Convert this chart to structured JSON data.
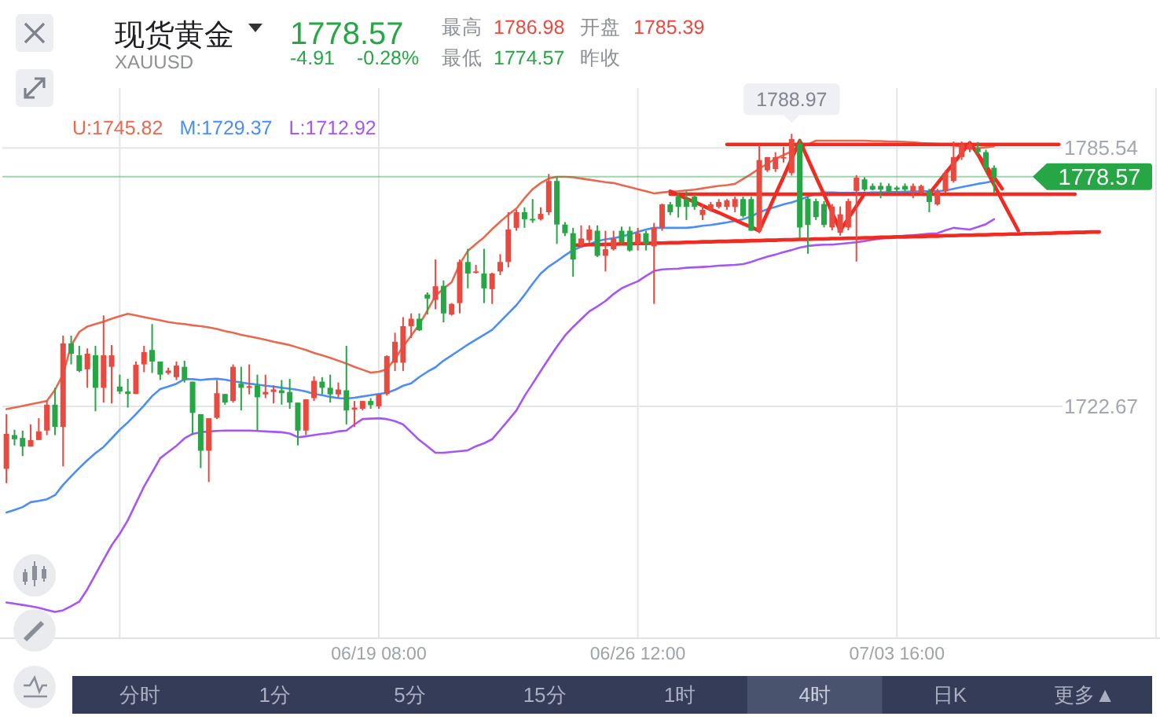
{
  "chart_data": {
    "type": "candlestick",
    "title": "现货黄金",
    "subtitle": "XAUUSD",
    "categories": [
      null,
      null,
      null,
      null,
      null,
      null,
      null,
      null,
      null,
      null,
      null,
      null,
      null,
      null,
      null,
      null,
      null,
      null,
      null,
      null,
      null,
      null,
      null,
      null,
      null,
      null,
      null,
      null,
      null,
      null,
      null,
      null,
      null,
      null,
      null,
      null,
      null,
      null,
      null,
      null,
      null,
      null,
      null,
      null,
      null,
      null,
      "06/19 08:00",
      null,
      null,
      null,
      null,
      null,
      null,
      null,
      null,
      null,
      null,
      null,
      null,
      null,
      null,
      null,
      null,
      null,
      null,
      null,
      null,
      null,
      null,
      null,
      null,
      null,
      null,
      null,
      null,
      null,
      null,
      null,
      "06/26 12:00",
      null,
      null,
      null,
      null,
      null,
      null,
      null,
      null,
      null,
      null,
      null,
      null,
      null,
      null,
      null,
      null,
      null,
      null,
      null,
      null,
      null,
      null,
      null,
      null,
      null,
      null,
      null,
      null,
      null,
      null,
      null,
      "07/03 16:00",
      null,
      null,
      null,
      null,
      null,
      null,
      null,
      null,
      null,
      null,
      null,
      null,
      null,
      null,
      null,
      null,
      null,
      null,
      null,
      null,
      null,
      null,
      null,
      null,
      null,
      null,
      null,
      null,
      null,
      null,
      null,
      null
    ],
    "ohlc": [
      [
        1707.5,
        1720.8,
        1704.0,
        1716.0
      ],
      [
        1715.7,
        1717.0,
        1713.2,
        1714.7
      ],
      [
        1715.0,
        1716.8,
        1710.6,
        1712.9
      ],
      [
        1712.9,
        1718.3,
        1712.9,
        1714.5
      ],
      [
        1714.5,
        1719.8,
        1714.5,
        1716.6
      ],
      [
        1716.8,
        1724.0,
        1715.7,
        1723.1
      ],
      [
        1723.1,
        1727.2,
        1715.7,
        1717.7
      ],
      [
        1717.7,
        1739.9,
        1708.1,
        1738.0
      ],
      [
        1738.0,
        1739.9,
        1732.9,
        1735.5
      ],
      [
        1735.1,
        1737.4,
        1731.0,
        1731.3
      ],
      [
        1731.7,
        1736.8,
        1727.2,
        1735.5
      ],
      [
        1735.1,
        1737.4,
        1721.5,
        1727.2
      ],
      [
        1727.2,
        1744.8,
        1723.6,
        1735.1
      ],
      [
        1732.3,
        1737.6,
        1723.4,
        1735.1
      ],
      [
        1727.5,
        1730.4,
        1725.7,
        1726.3
      ],
      [
        1726.3,
        1729.4,
        1722.4,
        1725.7
      ],
      [
        1725.7,
        1733.6,
        1725.7,
        1732.8
      ],
      [
        1732.9,
        1737.4,
        1731.0,
        1735.9
      ],
      [
        1736.4,
        1742.7,
        1730.8,
        1733.6
      ],
      [
        1733.6,
        1733.6,
        1729.1,
        1730.4
      ],
      [
        1730.8,
        1732.1,
        1730.4,
        1731.4
      ],
      [
        1729.8,
        1733.6,
        1729.1,
        1732.6
      ],
      [
        1732.3,
        1733.8,
        1728.5,
        1729.1
      ],
      [
        1728.7,
        1728.7,
        1715.7,
        1721.1
      ],
      [
        1720.8,
        1720.8,
        1707.7,
        1711.9
      ],
      [
        1711.9,
        1719.8,
        1704.3,
        1719.8
      ],
      [
        1719.9,
        1729.1,
        1719.6,
        1725.9
      ],
      [
        1725.7,
        1725.7,
        1723.1,
        1723.6
      ],
      [
        1724.0,
        1732.9,
        1723.6,
        1732.3
      ],
      [
        1728.2,
        1732.3,
        1721.7,
        1727.2
      ],
      [
        1727.2,
        1732.9,
        1725.6,
        1727.6
      ],
      [
        1727.8,
        1730.4,
        1716.8,
        1724.9
      ],
      [
        1725.6,
        1730.4,
        1724.7,
        1726.2
      ],
      [
        1726.2,
        1727.8,
        1723.4,
        1726.8
      ],
      [
        1726.6,
        1729.1,
        1723.1,
        1725.9
      ],
      [
        1726.2,
        1729.4,
        1722.1,
        1723.6
      ],
      [
        1723.6,
        1723.6,
        1713.2,
        1716.8
      ],
      [
        1716.8,
        1724.4,
        1715.7,
        1724.4
      ],
      [
        1724.7,
        1730.0,
        1724.0,
        1728.9
      ],
      [
        1728.7,
        1729.8,
        1725.6,
        1727.2
      ],
      [
        1727.2,
        1730.4,
        1723.6,
        1725.6
      ],
      [
        1725.6,
        1728.5,
        1724.7,
        1726.8
      ],
      [
        1726.6,
        1737.4,
        1718.3,
        1721.7
      ],
      [
        1721.9,
        1724.0,
        1717.7,
        1722.4
      ],
      [
        1722.1,
        1724.0,
        1721.7,
        1724.0
      ],
      [
        1724.0,
        1724.7,
        1722.1,
        1723.0
      ],
      [
        1722.7,
        1725.7,
        1722.1,
        1725.7
      ],
      [
        1725.7,
        1735.1,
        1725.3,
        1734.9
      ],
      [
        1733.3,
        1740.6,
        1731.3,
        1738.4
      ],
      [
        1733.3,
        1744.4,
        1731.3,
        1742.2
      ],
      [
        1742.2,
        1745.3,
        1739.3,
        1744.0
      ],
      [
        1744.0,
        1745.3,
        1741.0,
        1741.2
      ],
      [
        1749.9,
        1750.4,
        1745.0,
        1748.9
      ],
      [
        1748.6,
        1758.4,
        1746.3,
        1751.9
      ],
      [
        1752.0,
        1753.3,
        1743.1,
        1745.3
      ],
      [
        1745.0,
        1747.8,
        1744.8,
        1747.6
      ],
      [
        1747.8,
        1758.4,
        1745.3,
        1757.8
      ],
      [
        1757.8,
        1761.0,
        1751.4,
        1755.0
      ],
      [
        1755.2,
        1757.1,
        1755.0,
        1755.5
      ],
      [
        1755.0,
        1761.0,
        1747.8,
        1751.4
      ],
      [
        1751.2,
        1755.2,
        1747.6,
        1755.0
      ],
      [
        1755.5,
        1759.7,
        1754.6,
        1757.8
      ],
      [
        1757.8,
        1769.9,
        1756.5,
        1765.7
      ],
      [
        1766.1,
        1770.5,
        1765.4,
        1769.9
      ],
      [
        1769.9,
        1771.1,
        1766.1,
        1768.2
      ],
      [
        1768.3,
        1773.1,
        1767.3,
        1767.9
      ],
      [
        1768.2,
        1771.1,
        1767.9,
        1769.5
      ],
      [
        1769.9,
        1779.2,
        1769.2,
        1777.5
      ],
      [
        1777.5,
        1778.4,
        1762.2,
        1766.9
      ],
      [
        1766.9,
        1767.5,
        1764.1,
        1764.8
      ],
      [
        1764.8,
        1766.1,
        1754.2,
        1758.4
      ],
      [
        1761.9,
        1766.7,
        1761.3,
        1763.5
      ],
      [
        1763.1,
        1766.7,
        1762.2,
        1765.7
      ],
      [
        1765.4,
        1766.7,
        1759.0,
        1759.3
      ],
      [
        1759.3,
        1765.4,
        1755.5,
        1760.9
      ],
      [
        1760.9,
        1765.4,
        1760.6,
        1763.5
      ],
      [
        1765.4,
        1766.4,
        1762.2,
        1762.6
      ],
      [
        1765.4,
        1766.4,
        1760.3,
        1760.6
      ],
      [
        1762.2,
        1766.1,
        1760.6,
        1764.8
      ],
      [
        1764.8,
        1765.4,
        1760.6,
        1762.2
      ],
      [
        1761.6,
        1767.3,
        1747.6,
        1766.1
      ],
      [
        1766.1,
        1772.0,
        1765.4,
        1771.8
      ],
      [
        1771.8,
        1772.4,
        1769.2,
        1769.9
      ],
      [
        1773.7,
        1774.6,
        1768.6,
        1771.2
      ],
      [
        1773.1,
        1775.0,
        1768.0,
        1771.2
      ],
      [
        1773.7,
        1774.3,
        1770.5,
        1771.2
      ],
      [
        1769.2,
        1771.8,
        1768.0,
        1770.5
      ],
      [
        1770.5,
        1772.4,
        1770.0,
        1771.8
      ],
      [
        1771.2,
        1773.1,
        1770.8,
        1772.4
      ],
      [
        1771.2,
        1773.1,
        1770.5,
        1772.8
      ],
      [
        1771.2,
        1773.7,
        1769.9,
        1773.1
      ],
      [
        1773.1,
        1773.7,
        1768.6,
        1769.0
      ],
      [
        1773.1,
        1773.7,
        1765.4,
        1765.4
      ],
      [
        1765.4,
        1786.4,
        1764.8,
        1782.6
      ],
      [
        1780.1,
        1783.3,
        1779.7,
        1783.3
      ],
      [
        1780.4,
        1784.5,
        1779.7,
        1783.3
      ],
      [
        1783.0,
        1785.8,
        1782.0,
        1783.3
      ],
      [
        1779.4,
        1788.97,
        1778.8,
        1787.7
      ],
      [
        1786.6,
        1787.5,
        1763.6,
        1766.2
      ],
      [
        1773.2,
        1773.8,
        1759.8,
        1766.8
      ],
      [
        1772.6,
        1773.2,
        1768.0,
        1768.7
      ],
      [
        1771.9,
        1772.6,
        1766.2,
        1766.8
      ],
      [
        1766.2,
        1771.9,
        1765.5,
        1771.3
      ],
      [
        1764.9,
        1771.3,
        1764.2,
        1769.4
      ],
      [
        1766.2,
        1773.2,
        1765.5,
        1772.6
      ],
      [
        1775.1,
        1778.9,
        1757.9,
        1778.3
      ],
      [
        1777.9,
        1778.4,
        1775.0,
        1775.4
      ],
      [
        1776.3,
        1776.9,
        1775.2,
        1775.4
      ],
      [
        1776.3,
        1777.1,
        1773.3,
        1775.4
      ],
      [
        1776.3,
        1776.9,
        1774.6,
        1775.0
      ],
      [
        1775.9,
        1776.3,
        1775.0,
        1775.4
      ],
      [
        1776.3,
        1776.9,
        1775.0,
        1775.4
      ],
      [
        1775.0,
        1776.9,
        1773.3,
        1776.3
      ],
      [
        1774.6,
        1776.6,
        1774.3,
        1776.3
      ],
      [
        1775.0,
        1775.6,
        1769.9,
        1772.4
      ],
      [
        1771.8,
        1775.6,
        1771.5,
        1775.0
      ],
      [
        1775.0,
        1780.1,
        1774.6,
        1779.4
      ],
      [
        1777.5,
        1787.1,
        1777.1,
        1783.3
      ],
      [
        1783.3,
        1787.1,
        1782.6,
        1786.4
      ],
      [
        1785.1,
        1787.1,
        1784.5,
        1786.4
      ],
      [
        1785.39,
        1786.98,
        1783.9,
        1784.5
      ],
      [
        1784.5,
        1785.1,
        1779.7,
        1780.7
      ],
      [
        1780.7,
        1781.3,
        1774.57,
        1778.57
      ],
      null,
      null,
      null,
      null,
      null,
      null,
      null,
      null,
      null,
      null,
      null,
      null,
      null,
      null,
      null,
      null,
      null,
      null,
      null,
      null
    ],
    "colors": [
      "#e84a3f",
      "#27a645",
      "#27a645",
      "#e84a3f",
      "#e84a3f",
      "#e84a3f",
      "#27a645",
      "#e84a3f",
      "#27a645",
      "#27a645",
      "#e84a3f",
      "#27a645",
      "#e84a3f",
      "#e84a3f",
      "#27a645",
      "#27a645",
      "#e84a3f",
      "#e84a3f",
      "#27a645",
      "#27a645",
      "#e84a3f",
      "#e84a3f",
      "#27a645",
      "#27a645",
      "#27a645",
      "#e84a3f",
      "#e84a3f",
      "#27a645",
      "#e84a3f",
      "#27a645",
      "#e84a3f",
      "#27a645",
      "#e84a3f",
      "#e84a3f",
      "#27a645",
      "#27a645",
      "#27a645",
      "#e84a3f",
      "#e84a3f",
      "#27a645",
      "#27a645",
      "#e84a3f",
      "#27a645",
      "#e84a3f",
      "#e84a3f",
      "#27a645",
      "#e84a3f",
      "#e84a3f",
      "#e84a3f",
      "#e84a3f",
      "#e84a3f",
      "#27a645",
      "#27a645",
      "#e84a3f",
      "#27a645",
      "#e84a3f",
      "#e84a3f",
      "#27a645",
      "#e84a3f",
      "#27a645",
      "#e84a3f",
      "#e84a3f",
      "#e84a3f",
      "#e84a3f",
      "#27a645",
      "#27a645",
      "#e84a3f",
      "#e84a3f",
      "#27a645",
      "#27a645",
      "#27a645",
      "#e84a3f",
      "#e84a3f",
      "#27a645",
      "#e84a3f",
      "#e84a3f",
      "#27a645",
      "#27a645",
      "#e84a3f",
      "#27a645",
      "#e84a3f",
      "#e84a3f",
      "#27a645",
      "#27a645",
      "#27a645",
      "#27a645",
      "#e84a3f",
      "#e84a3f",
      "#e84a3f",
      "#e84a3f",
      "#e84a3f",
      "#27a645",
      "#27a645",
      "#e84a3f",
      "#e84a3f",
      "#e84a3f",
      "#e84a3f",
      "#e84a3f",
      "#27a645",
      "#27a645",
      "#27a645",
      "#27a645",
      "#e84a3f",
      "#e84a3f",
      "#e84a3f",
      "#e84a3f",
      "#27a645",
      "#27a645",
      "#27a645",
      "#27a645",
      "#27a645",
      "#27a645",
      "#e84a3f",
      "#e84a3f",
      "#27a645",
      "#e84a3f",
      "#e84a3f",
      "#e84a3f",
      "#e84a3f",
      "#e84a3f",
      "#27a645",
      "#27a645",
      "#27a645",
      null,
      null,
      null,
      null,
      null,
      null,
      null,
      null,
      null,
      null,
      null,
      null,
      null,
      null,
      null,
      null,
      null,
      null,
      null,
      null
    ],
    "series": [
      {
        "name": "U:1745.82",
        "color": "#e8694f",
        "type": "line",
        "values": [
          1722.0,
          1722.4,
          1722.8,
          1723.2,
          1723.6,
          1724.0,
          1726.7,
          1730.5,
          1737.5,
          1740.8,
          1742.1,
          1742.7,
          1743.3,
          1744.0,
          1744.6,
          1745.2,
          1744.8,
          1744.4,
          1744.0,
          1743.6,
          1743.2,
          1742.9,
          1742.7,
          1742.4,
          1742.2,
          1741.9,
          1741.5,
          1741.0,
          1740.6,
          1740.1,
          1739.7,
          1739.3,
          1738.9,
          1738.4,
          1738.0,
          1737.6,
          1737.0,
          1736.4,
          1735.7,
          1735.1,
          1734.5,
          1733.8,
          1733.1,
          1732.3,
          1731.6,
          1730.9,
          1731.1,
          1731.7,
          1734.3,
          1737.2,
          1739.9,
          1742.6,
          1746.0,
          1749.6,
          1751.3,
          1752.9,
          1757.3,
          1760.5,
          1762.2,
          1763.8,
          1765.8,
          1767.6,
          1769.3,
          1770.8,
          1773.3,
          1775.5,
          1777.0,
          1778.1,
          1778.5,
          1778.5,
          1778.4,
          1778.1,
          1777.8,
          1777.5,
          1777.2,
          1777.0,
          1776.5,
          1776.0,
          1775.5,
          1775.0,
          1774.5,
          1774.7,
          1774.9,
          1775.0,
          1775.2,
          1775.4,
          1775.7,
          1776.0,
          1776.3,
          1776.5,
          1776.8,
          1778.0,
          1779.2,
          1780.5,
          1781.7,
          1782.9,
          1783.8,
          1784.7,
          1785.5,
          1786.4,
          1787.3,
          1787.3,
          1787.3,
          1787.3,
          1787.3,
          1787.3,
          1787.3,
          1787.2,
          1787.2,
          1787.1,
          1787.1,
          1787.0,
          1786.9,
          1786.7,
          1786.6,
          1786.5,
          1786.3,
          1786.1,
          1785.9,
          1785.7,
          1785.5,
          1785.7,
          1785.9,
          null,
          null,
          null,
          null,
          null,
          null,
          null,
          null,
          null,
          null,
          null,
          null,
          null,
          null,
          null,
          null,
          null,
          null,
          null,
          null
        ]
      },
      {
        "name": "M:1729.37",
        "color": "#4b8ef7",
        "type": "line",
        "values": [
          1696.9,
          1697.5,
          1698.2,
          1699.4,
          1699.7,
          1700.1,
          1701.1,
          1703.6,
          1705.7,
          1707.7,
          1709.6,
          1711.3,
          1712.8,
          1714.9,
          1717.0,
          1718.8,
          1720.8,
          1722.9,
          1725.2,
          1726.9,
          1727.5,
          1728.2,
          1729.3,
          1729.3,
          1729.1,
          1729.3,
          1729.4,
          1729.2,
          1728.8,
          1728.5,
          1728.2,
          1728.0,
          1727.7,
          1727.5,
          1727.2,
          1727.0,
          1726.7,
          1726.3,
          1725.7,
          1725.4,
          1725.0,
          1724.7,
          1724.6,
          1724.8,
          1725.1,
          1725.4,
          1725.7,
          1726.0,
          1726.7,
          1727.7,
          1728.3,
          1729.8,
          1731.1,
          1732.2,
          1733.8,
          1735.1,
          1736.4,
          1737.7,
          1738.9,
          1740.1,
          1741.3,
          1743.3,
          1745.3,
          1747.3,
          1749.8,
          1752.5,
          1755.0,
          1756.7,
          1758.0,
          1759.4,
          1760.7,
          1761.5,
          1762.1,
          1762.9,
          1763.3,
          1763.6,
          1764.0,
          1764.5,
          1765.1,
          1765.7,
          1766.1,
          1766.1,
          1766.1,
          1766.1,
          1766.1,
          1766.3,
          1766.6,
          1766.8,
          1767.1,
          1767.4,
          1767.8,
          1768.2,
          1768.9,
          1769.9,
          1770.6,
          1771.2,
          1771.8,
          1772.3,
          1772.9,
          1773.7,
          1774.3,
          1774.7,
          1774.7,
          1774.6,
          1774.6,
          1774.6,
          1774.6,
          1774.7,
          1774.7,
          1774.8,
          1774.8,
          1774.9,
          1774.9,
          1775.0,
          1775.0,
          1775.0,
          1775.2,
          1775.6,
          1776.0,
          1776.4,
          1776.8,
          1777.1,
          1777.5,
          null,
          null,
          null,
          null,
          null,
          null,
          null,
          null,
          null,
          null,
          null,
          null,
          null,
          null,
          null,
          null,
          null,
          null,
          null,
          null
        ]
      },
      {
        "name": "L:1712.92",
        "color": "#a556f5",
        "type": "line",
        "values": [
          1675.0,
          1674.7,
          1674.4,
          1674.1,
          1673.7,
          1673.2,
          1672.7,
          1673.1,
          1674.1,
          1675.2,
          1678.2,
          1681.8,
          1685.4,
          1688.9,
          1691.7,
          1695.0,
          1699.1,
          1703.2,
          1706.6,
          1710.1,
          1711.6,
          1713.1,
          1714.9,
          1716.0,
          1716.4,
          1716.6,
          1716.7,
          1716.8,
          1716.8,
          1716.8,
          1716.8,
          1716.7,
          1716.6,
          1716.5,
          1716.4,
          1716.1,
          1715.2,
          1715.4,
          1715.7,
          1716.0,
          1716.2,
          1716.6,
          1716.8,
          1718.3,
          1719.6,
          1719.7,
          1719.8,
          1719.6,
          1719.1,
          1718.3,
          1716.4,
          1714.5,
          1713.0,
          1711.4,
          1711.4,
          1711.6,
          1711.8,
          1712.0,
          1713.0,
          1713.7,
          1714.7,
          1717.0,
          1719.3,
          1721.7,
          1725.2,
          1728.2,
          1731.3,
          1734.3,
          1737.2,
          1739.9,
          1742.0,
          1743.9,
          1745.8,
          1747.0,
          1748.3,
          1750.0,
          1751.4,
          1752.3,
          1753.1,
          1754.4,
          1755.6,
          1756.0,
          1756.1,
          1756.2,
          1756.4,
          1756.5,
          1756.6,
          1756.7,
          1756.9,
          1757.0,
          1757.1,
          1757.3,
          1757.8,
          1758.5,
          1759.1,
          1759.6,
          1760.2,
          1760.7,
          1761.3,
          1761.7,
          1761.9,
          1762.0,
          1762.0,
          1762.2,
          1762.4,
          1762.6,
          1762.9,
          1763.2,
          1763.5,
          1763.7,
          1764.0,
          1764.2,
          1764.3,
          1764.5,
          1764.7,
          1764.8,
          1765.5,
          1766.1,
          1765.9,
          1765.7,
          1766.3,
          1767.0,
          1768.2,
          null,
          null,
          null,
          null,
          null,
          null,
          null,
          null,
          null,
          null,
          null,
          null,
          null,
          null,
          null,
          null,
          null,
          null,
          null,
          null
        ]
      },
      {
        "color": "#f22a20",
        "type": "line",
        "values": [
          null,
          null,
          null,
          null,
          null,
          null,
          null,
          null,
          null,
          null,
          null,
          null,
          null,
          null,
          null,
          null,
          null,
          null,
          null,
          null,
          null,
          null,
          null,
          null,
          null,
          null,
          null,
          null,
          null,
          null,
          null,
          null,
          null,
          null,
          null,
          null,
          null,
          null,
          null,
          null,
          null,
          null,
          null,
          null,
          null,
          null,
          null,
          null,
          null,
          null,
          null,
          null,
          null,
          null,
          null,
          null,
          null,
          null,
          null,
          null,
          null,
          null,
          null,
          null,
          null,
          null,
          null,
          null,
          null,
          null,
          null,
          null,
          null,
          null,
          null,
          null,
          null,
          null,
          null,
          null,
          null,
          null,
          null,
          null,
          null,
          null,
          null,
          null,
          null,
          1786.4,
          1786.4,
          1786.4,
          1786.4,
          1786.4,
          1786.4,
          1786.4,
          1786.4,
          1786.4,
          1786.4,
          1786.4,
          1786.4,
          1786.4,
          1786.4,
          1786.4,
          1786.4,
          1786.4,
          1786.4,
          1786.4,
          1786.4,
          1786.4,
          1786.4,
          1786.4,
          1786.4,
          1786.4,
          1786.4,
          1786.4,
          1786.4,
          1786.4,
          1786.4,
          1786.4,
          1786.4,
          1786.4,
          1786.4,
          1786.4,
          1786.4,
          1786.4,
          1786.4,
          1786.4,
          1786.4,
          1786.4,
          1786.4,
          null,
          null,
          null,
          null,
          null,
          null,
          null,
          null,
          null,
          null,
          null,
          null
        ]
      },
      {
        "color": "#f22a20",
        "type": "line",
        "values": [
          null,
          null,
          null,
          null,
          null,
          null,
          null,
          null,
          null,
          null,
          null,
          null,
          null,
          null,
          null,
          null,
          null,
          null,
          null,
          null,
          null,
          null,
          null,
          null,
          null,
          null,
          null,
          null,
          null,
          null,
          null,
          null,
          null,
          null,
          null,
          null,
          null,
          null,
          null,
          null,
          null,
          null,
          null,
          null,
          null,
          null,
          null,
          null,
          null,
          null,
          null,
          null,
          null,
          null,
          null,
          null,
          null,
          null,
          null,
          null,
          null,
          null,
          null,
          null,
          null,
          null,
          null,
          null,
          null,
          null,
          null,
          null,
          null,
          null,
          null,
          null,
          null,
          null,
          null,
          null,
          null,
          null,
          1774.3,
          1774.3,
          1774.3,
          1774.3,
          1774.3,
          1774.3,
          1774.3,
          1774.3,
          1774.3,
          1774.3,
          1774.3,
          1774.3,
          1774.3,
          1774.3,
          1774.3,
          1774.3,
          1774.3,
          1774.3,
          1774.3,
          1774.3,
          1774.3,
          1774.3,
          1774.3,
          1774.3,
          1774.3,
          1774.3,
          1774.3,
          1774.3,
          1774.3,
          1774.3,
          1774.3,
          1774.3,
          1774.3,
          1774.3,
          1774.3,
          1774.3,
          1774.3,
          1774.3,
          1774.3,
          1774.3,
          1774.3,
          1774.3,
          1774.3,
          1774.3,
          1774.3,
          1774.3,
          1774.3,
          1774.3,
          1774.3,
          1774.3,
          1774.3,
          null,
          null,
          null,
          null,
          null,
          null,
          null,
          null,
          null,
          null
        ]
      },
      {
        "color": "#f22a20",
        "type": "line",
        "values": [
          null,
          null,
          null,
          null,
          null,
          null,
          null,
          null,
          null,
          null,
          null,
          null,
          null,
          null,
          null,
          null,
          null,
          null,
          null,
          null,
          null,
          null,
          null,
          null,
          null,
          null,
          null,
          null,
          null,
          null,
          null,
          null,
          null,
          null,
          null,
          null,
          null,
          null,
          null,
          null,
          null,
          null,
          null,
          null,
          null,
          null,
          null,
          null,
          null,
          null,
          null,
          null,
          null,
          null,
          null,
          null,
          null,
          null,
          null,
          null,
          null,
          null,
          null,
          null,
          null,
          null,
          null,
          null,
          null,
          null,
          1761.9,
          1761.9,
          1762.0,
          1762.0,
          1762.1,
          1762.1,
          1762.2,
          1762.2,
          1762.3,
          1762.3,
          1762.4,
          1762.4,
          1762.5,
          1762.5,
          1762.6,
          1762.6,
          1762.7,
          1762.7,
          1762.8,
          1762.8,
          1762.9,
          1762.9,
          1763.0,
          1763.0,
          1763.1,
          1763.1,
          1763.2,
          1763.2,
          1763.3,
          1763.3,
          1763.4,
          1763.4,
          1763.5,
          1763.5,
          1763.6,
          1763.6,
          1763.7,
          1763.7,
          1763.8,
          1763.8,
          1763.9,
          1763.9,
          1764.0,
          1764.0,
          1764.1,
          1764.1,
          1764.2,
          1764.2,
          1764.3,
          1764.3,
          1764.4,
          1764.4,
          1764.5,
          1764.5,
          1764.6,
          1764.6,
          1764.7,
          1764.7,
          1764.8,
          1764.8,
          1764.9,
          1764.9,
          1765.0,
          1765.0,
          1765.1,
          1765.1,
          null,
          null,
          null,
          null,
          null,
          null,
          null
        ]
      },
      {
        "color": "#f22a20",
        "type": "line",
        "values": [
          null,
          null,
          null,
          null,
          null,
          null,
          null,
          null,
          null,
          null,
          null,
          null,
          null,
          null,
          null,
          null,
          null,
          null,
          null,
          null,
          null,
          null,
          null,
          null,
          null,
          null,
          null,
          null,
          null,
          null,
          null,
          null,
          null,
          null,
          null,
          null,
          null,
          null,
          null,
          null,
          null,
          null,
          null,
          null,
          null,
          null,
          null,
          null,
          null,
          null,
          null,
          null,
          null,
          null,
          null,
          null,
          null,
          null,
          null,
          null,
          null,
          null,
          null,
          null,
          null,
          null,
          null,
          null,
          null,
          null,
          null,
          null,
          null,
          null,
          null,
          null,
          null,
          null,
          null,
          null,
          null,
          null,
          1775.0,
          1774.1,
          1773.2,
          1772.4,
          1771.5,
          1770.6,
          1769.8,
          1768.9,
          1768.0,
          1767.1,
          1766.3,
          1765.4,
          1769.8,
          1774.2,
          1778.5,
          1782.9,
          1787.3,
          1782.9,
          1778.5,
          1774.2,
          1769.8,
          1765.4,
          1768.4,
          1771.4,
          1774.4,
          null,
          null,
          null,
          null,
          null,
          null,
          null,
          null,
          null,
          null,
          null,
          null,
          null,
          null,
          null,
          null,
          null,
          null,
          null,
          null,
          null,
          null,
          null,
          null,
          null,
          null,
          null,
          null,
          null,
          null,
          null,
          null,
          null,
          null,
          null,
          null
        ]
      },
      {
        "color": "#f22a20",
        "type": "line",
        "values": [
          null,
          null,
          null,
          null,
          null,
          null,
          null,
          null,
          null,
          null,
          null,
          null,
          null,
          null,
          null,
          null,
          null,
          null,
          null,
          null,
          null,
          null,
          null,
          null,
          null,
          null,
          null,
          null,
          null,
          null,
          null,
          null,
          null,
          null,
          null,
          null,
          null,
          null,
          null,
          null,
          null,
          null,
          null,
          null,
          null,
          null,
          null,
          null,
          null,
          null,
          null,
          null,
          null,
          null,
          null,
          null,
          null,
          null,
          null,
          null,
          null,
          null,
          null,
          null,
          null,
          null,
          null,
          null,
          null,
          null,
          null,
          null,
          null,
          null,
          null,
          null,
          null,
          null,
          null,
          null,
          null,
          null,
          null,
          null,
          null,
          null,
          null,
          null,
          null,
          null,
          null,
          null,
          null,
          null,
          null,
          null,
          null,
          null,
          null,
          null,
          null,
          null,
          null,
          null,
          null,
          null,
          null,
          null,
          null,
          null,
          null,
          null,
          null,
          null,
          1774.4,
          1776.9,
          1779.4,
          1781.8,
          1784.3,
          1786.8,
          1784.0,
          1781.2,
          1778.4,
          1775.6,
          null,
          null,
          null,
          null,
          null,
          null,
          null,
          null,
          null,
          null,
          null,
          null,
          null,
          null,
          null,
          null,
          null,
          null,
          null
        ]
      },
      {
        "color": "#f22a20",
        "type": "line",
        "values": [
          null,
          null,
          null,
          null,
          null,
          null,
          null,
          null,
          null,
          null,
          null,
          null,
          null,
          null,
          null,
          null,
          null,
          null,
          null,
          null,
          null,
          null,
          null,
          null,
          null,
          null,
          null,
          null,
          null,
          null,
          null,
          null,
          null,
          null,
          null,
          null,
          null,
          null,
          null,
          null,
          null,
          null,
          null,
          null,
          null,
          null,
          null,
          null,
          null,
          null,
          null,
          null,
          null,
          null,
          null,
          null,
          null,
          null,
          null,
          null,
          null,
          null,
          null,
          null,
          null,
          null,
          null,
          null,
          null,
          null,
          null,
          null,
          null,
          null,
          null,
          null,
          null,
          null,
          null,
          null,
          null,
          null,
          null,
          null,
          null,
          null,
          null,
          null,
          null,
          null,
          null,
          null,
          null,
          null,
          null,
          null,
          null,
          null,
          null,
          null,
          null,
          null,
          null,
          null,
          null,
          null,
          null,
          null,
          null,
          null,
          null,
          null,
          null,
          null,
          null,
          null,
          null,
          null,
          null,
          null,
          1784.0,
          1780.3,
          1776.6,
          1772.8,
          1769.1,
          1765.4,
          null,
          null,
          null,
          null,
          null,
          null,
          null,
          null,
          null,
          null,
          null,
          null,
          null,
          null,
          null,
          null,
          null
        ]
      }
    ],
    "ylim": [
      1666.3,
      1800.1
    ],
    "yticks": [
      1785.54,
      1722.67
    ],
    "grid": true,
    "legend": "top left",
    "ref_lines": [
      {
        "axis": "y",
        "value": 1778.57,
        "label": "1778.57",
        "color": "#27a645"
      }
    ],
    "annotations": [
      "1778.57",
      "-4.91",
      "-0.28%",
      "最高",
      "1786.98",
      "开盘",
      "1785.39",
      "最低",
      "1774.57",
      "昨收",
      {
        "text": "1788.97",
        "y": 1788.97
      },
      "分时",
      "1分",
      "5分",
      "15分",
      "1时",
      "4时",
      "日K",
      "更多▲"
    ]
  }
}
